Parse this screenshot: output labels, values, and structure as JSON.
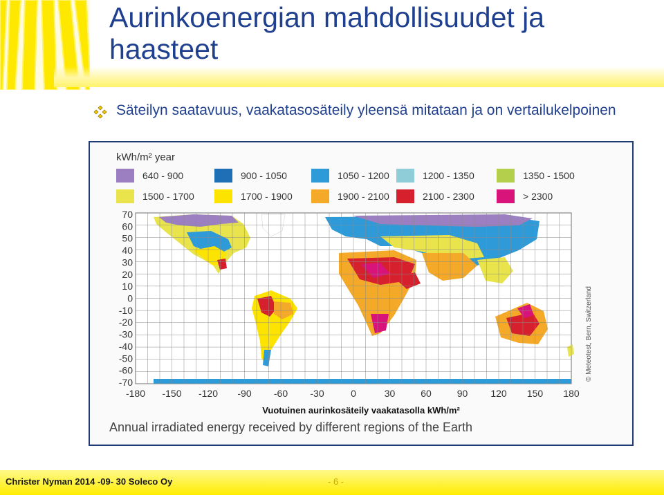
{
  "slide": {
    "title": "Aurinkoenergian mahdollisuudet ja haasteet",
    "bullet": "Säteilyn saatavuus, vaakatasosäteily yleensä mitataan ja on vertailukelpoinen"
  },
  "map": {
    "unit_label": "kWh/m² year",
    "legend": [
      {
        "label": "640 - 900",
        "color": "#9b7fc0"
      },
      {
        "label": "900 - 1050",
        "color": "#1e6fb5"
      },
      {
        "label": "1050 - 1200",
        "color": "#2f9ad8"
      },
      {
        "label": "1200 - 1350",
        "color": "#8fcdd8"
      },
      {
        "label": "1350 - 1500",
        "color": "#b4cf4c"
      },
      {
        "label": "1500 - 1700",
        "color": "#e9e44c"
      },
      {
        "label": "1700 - 1900",
        "color": "#fde400"
      },
      {
        "label": "1900 - 2100",
        "color": "#f4a928"
      },
      {
        "label": "2100 - 2300",
        "color": "#d6202e"
      },
      {
        "label": "> 2300",
        "color": "#d8137a"
      }
    ],
    "y_ticks": [
      "70",
      "60",
      "50",
      "40",
      "30",
      "20",
      "10",
      "0",
      "-10",
      "-20",
      "-30",
      "-40",
      "-50",
      "-60",
      "-70"
    ],
    "x_ticks": [
      "-180",
      "-150",
      "-120",
      "-90",
      "-60",
      "-30",
      "0",
      "30",
      "60",
      "90",
      "120",
      "150",
      "180"
    ],
    "copyright": "© Meteotest, Bern, Switzerland",
    "caption_fi": "Vuotuinen aurinkosäteily vaakatasolla kWh/m²",
    "caption_en": "Annual irradiated energy received by different regions of the Earth"
  },
  "footer": {
    "left": "Christer Nyman 2014 -09- 30 Soleco Oy",
    "page": "- 6 -"
  }
}
